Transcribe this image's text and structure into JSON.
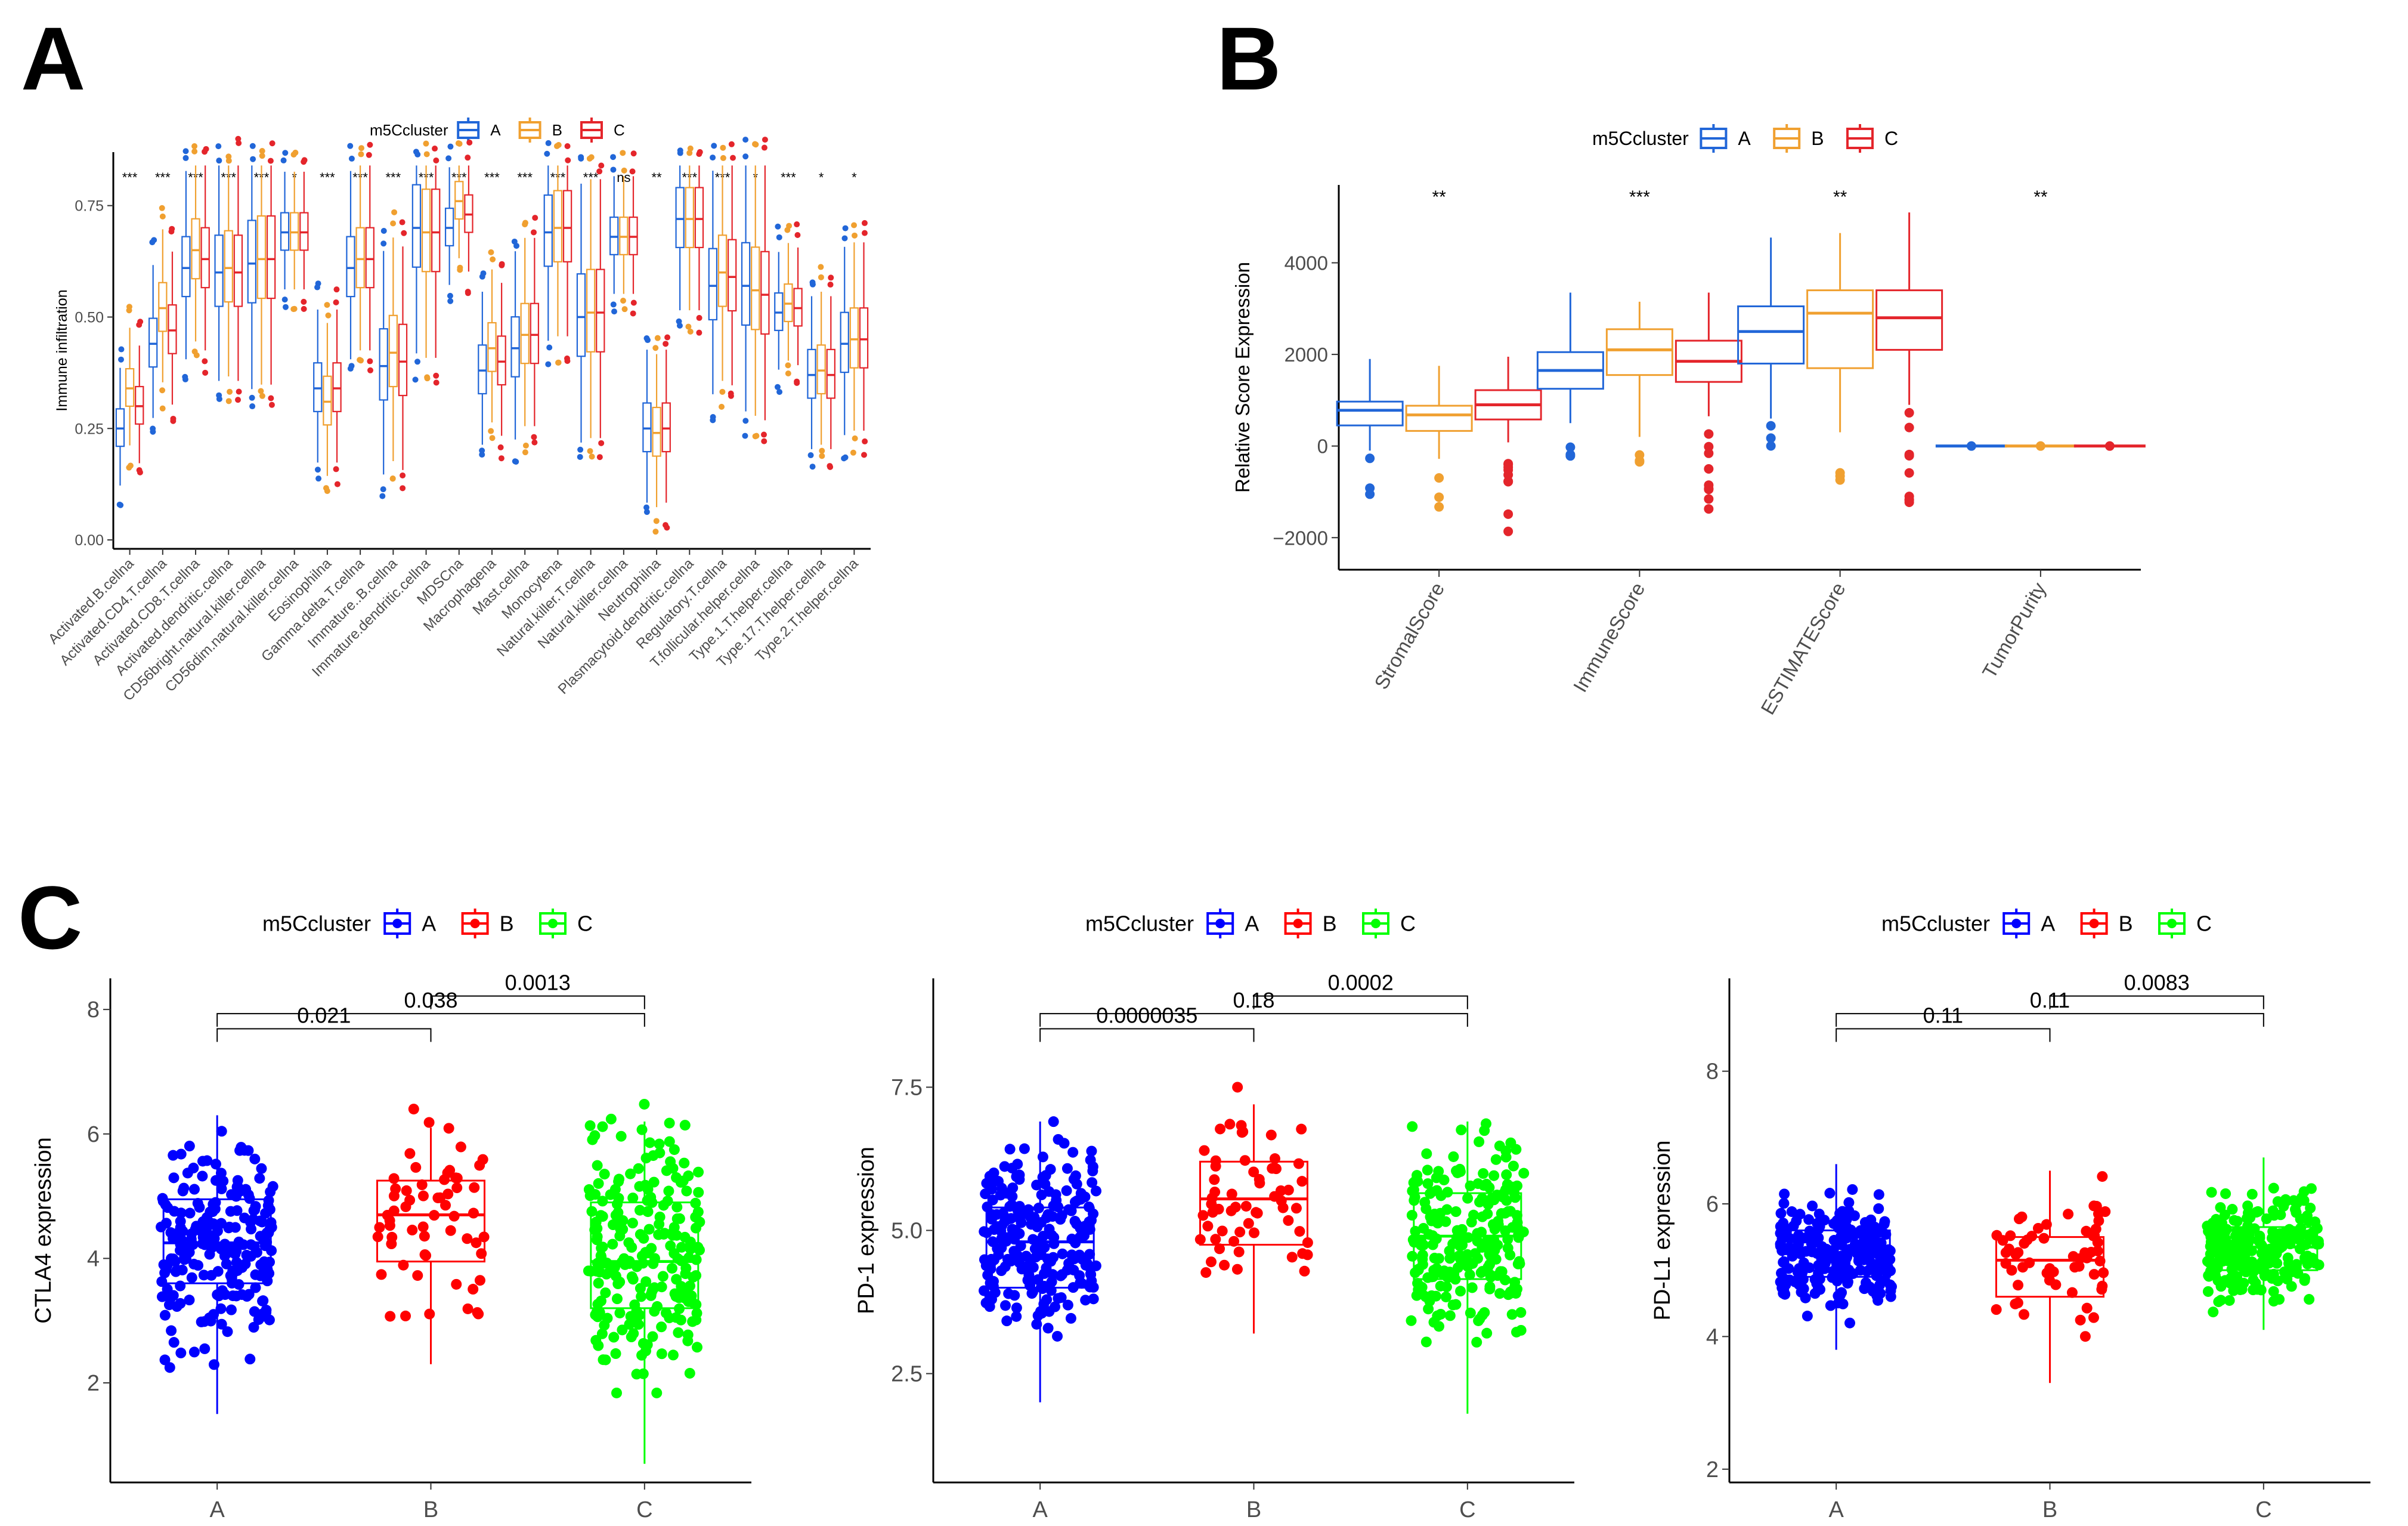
{
  "colors": {
    "A": "#2166d8",
    "B": "#f0a030",
    "C": "#e4252b",
    "C_blue": "#0000ff",
    "C_red": "#ff0000",
    "C_green": "#00ff00",
    "axis": "#000000"
  },
  "chart_data": [
    {
      "panel": "A",
      "type": "box",
      "legend": {
        "title": "m5Ccluster",
        "labels": [
          "A",
          "B",
          "C"
        ]
      },
      "ylabel": "Immune infiltration",
      "ylim": [
        -0.02,
        0.87
      ],
      "yticks": [
        0.0,
        0.25,
        0.5,
        0.75
      ],
      "ytick_labels": [
        "0.00",
        "0.25",
        "0.50",
        "0.75"
      ],
      "categories": [
        "Activated.B.cellna",
        "Activated.CD4.T.cellna",
        "Activated.CD8.T.cellna",
        "Activated.dendritic.cellna",
        "CD56bright.natural.killer.cellna",
        "CD56dim.natural.killer.cellna",
        "Eosinophilna",
        "Gamma.delta.T.cellna",
        "Immature..B.cellna",
        "Immature.dendritic.cellna",
        "MDSCna",
        "Macrophagena",
        "Mast.cellna",
        "Monocytena",
        "Natural.killer.T.cellna",
        "Natural.killer.cellna",
        "Neutrophilna",
        "Plasmacytoid.dendritic.cellna",
        "Regulatory.T.cellna",
        "T.follicular.helper.cellna",
        "Type.1.T.helper.cellna",
        "Type.17.T.helper.cellna",
        "Type.2.T.helper.cellna"
      ],
      "significance": [
        "***",
        "***",
        "***",
        "***",
        "***",
        "*",
        "***",
        "***",
        "***",
        "***",
        "***",
        "***",
        "***",
        "***",
        "***",
        "ns",
        "**",
        "***",
        "***",
        "*",
        "***",
        "*",
        "*"
      ],
      "medians": {
        "A": [
          0.25,
          0.44,
          0.61,
          0.6,
          0.62,
          0.69,
          0.34,
          0.61,
          0.39,
          0.7,
          0.7,
          0.38,
          0.43,
          0.69,
          0.5,
          0.68,
          0.25,
          0.72,
          0.57,
          0.57,
          0.51,
          0.37,
          0.44
        ],
        "B": [
          0.34,
          0.52,
          0.65,
          0.61,
          0.63,
          0.69,
          0.31,
          0.63,
          0.42,
          0.69,
          0.76,
          0.43,
          0.46,
          0.7,
          0.51,
          0.68,
          0.24,
          0.72,
          0.6,
          0.56,
          0.53,
          0.38,
          0.45
        ],
        "C": [
          0.3,
          0.47,
          0.63,
          0.6,
          0.63,
          0.69,
          0.34,
          0.63,
          0.4,
          0.69,
          0.73,
          0.4,
          0.46,
          0.7,
          0.51,
          0.68,
          0.25,
          0.72,
          0.59,
          0.55,
          0.52,
          0.37,
          0.45
        ]
      }
    },
    {
      "panel": "B",
      "type": "box",
      "legend": {
        "title": "m5Ccluster",
        "labels": [
          "A",
          "B",
          "C"
        ]
      },
      "ylabel": "Relative Score Expression",
      "ylim": [
        -2700,
        5700
      ],
      "yticks": [
        -2000,
        0,
        2000,
        4000
      ],
      "ytick_labels": [
        "−2000",
        "0",
        "2000",
        "4000"
      ],
      "categories": [
        "StromalScore",
        "ImmuneScore",
        "ESTIMATEScore",
        "TumorPurity"
      ],
      "significance": [
        "**",
        "***",
        "**",
        "**"
      ],
      "series": [
        {
          "name": "A",
          "q1": [
            450,
            1250,
            1800,
            0
          ],
          "median": [
            780,
            1650,
            2500,
            0
          ],
          "q3": [
            970,
            2050,
            3050,
            0
          ],
          "lo": [
            -100,
            500,
            600,
            0
          ],
          "hi": [
            1900,
            3350,
            4550,
            0
          ]
        },
        {
          "name": "B",
          "q1": [
            330,
            1550,
            1700,
            0
          ],
          "median": [
            680,
            2100,
            2900,
            0
          ],
          "q3": [
            880,
            2550,
            3400,
            0
          ],
          "lo": [
            -280,
            200,
            300,
            0
          ],
          "hi": [
            1750,
            3150,
            4650,
            0
          ]
        },
        {
          "name": "C",
          "q1": [
            580,
            1400,
            2100,
            0
          ],
          "median": [
            900,
            1850,
            2800,
            0
          ],
          "q3": [
            1220,
            2300,
            3400,
            0
          ],
          "lo": [
            80,
            650,
            900,
            0
          ],
          "hi": [
            1950,
            3350,
            5100,
            0
          ]
        }
      ]
    },
    {
      "panel": "C",
      "type": "box",
      "legend": {
        "title": "m5Ccluster",
        "labels": [
          "A",
          "B",
          "C"
        ]
      },
      "subplots": [
        {
          "ylabel": "CTLA4 expression",
          "ylim": [
            0.4,
            8.5
          ],
          "yticks": [
            2,
            4,
            6,
            8
          ],
          "ytick_labels": [
            "2",
            "4",
            "6",
            "8"
          ],
          "categories": [
            "A",
            "B",
            "C"
          ],
          "q1": [
            3.6,
            3.95,
            3.2
          ],
          "median": [
            4.25,
            4.7,
            3.95
          ],
          "q3": [
            4.95,
            5.25,
            4.9
          ],
          "lo": [
            1.5,
            2.3,
            0.7
          ],
          "hi": [
            6.3,
            6.1,
            6.2
          ],
          "comparisons": [
            {
              "pair": [
                "A",
                "B"
              ],
              "p": "0.021"
            },
            {
              "pair": [
                "A",
                "C"
              ],
              "p": "0.038"
            },
            {
              "pair": [
                "B",
                "C"
              ],
              "p": "0.0013"
            }
          ]
        },
        {
          "ylabel": "PD-1 expression",
          "ylim": [
            0.6,
            9.4
          ],
          "yticks": [
            2.5,
            5.0,
            7.5
          ],
          "ytick_labels": [
            "2.5",
            "5.0",
            "7.5"
          ],
          "categories": [
            "A",
            "B",
            "C"
          ],
          "q1": [
            4.0,
            4.75,
            4.15
          ],
          "median": [
            4.8,
            5.55,
            4.9
          ],
          "q3": [
            5.4,
            6.2,
            5.65
          ],
          "lo": [
            2.0,
            3.2,
            1.8
          ],
          "hi": [
            6.9,
            7.2,
            6.9
          ],
          "comparisons": [
            {
              "pair": [
                "A",
                "B"
              ],
              "p": "0.0000035"
            },
            {
              "pair": [
                "A",
                "C"
              ],
              "p": "0.18"
            },
            {
              "pair": [
                "B",
                "C"
              ],
              "p": "0.0002"
            }
          ]
        },
        {
          "ylabel": "PD-L1 expression",
          "ylim": [
            1.8,
            9.4
          ],
          "yticks": [
            2,
            4,
            6,
            8
          ],
          "ytick_labels": [
            "2",
            "4",
            "6",
            "8"
          ],
          "categories": [
            "A",
            "B",
            "C"
          ],
          "q1": [
            4.9,
            4.6,
            5.0
          ],
          "median": [
            5.25,
            5.15,
            5.35
          ],
          "q3": [
            5.6,
            5.5,
            5.65
          ],
          "lo": [
            3.8,
            3.3,
            4.1
          ],
          "hi": [
            6.6,
            6.5,
            6.7
          ],
          "comparisons": [
            {
              "pair": [
                "A",
                "B"
              ],
              "p": "0.11"
            },
            {
              "pair": [
                "A",
                "C"
              ],
              "p": "0.11"
            },
            {
              "pair": [
                "B",
                "C"
              ],
              "p": "0.0083"
            }
          ]
        }
      ]
    }
  ]
}
